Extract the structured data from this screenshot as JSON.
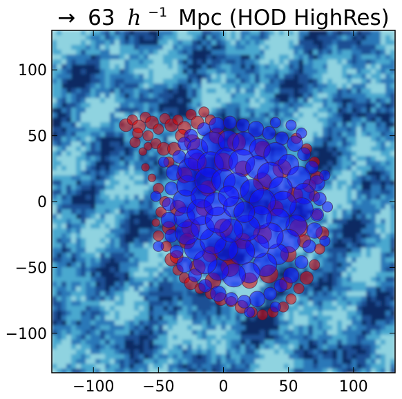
{
  "chart_data": {
    "type": "scatter",
    "title": {
      "arrow": "→",
      "prefix": "63",
      "math_symbol": "h",
      "superscript": "−1",
      "suffix": "Mpc (HOD HighRes)"
    },
    "xlabel": "",
    "ylabel": "",
    "xlim": [
      -132,
      132
    ],
    "ylim": [
      -130,
      130
    ],
    "x_ticks": [
      -100,
      -50,
      0,
      50,
      100
    ],
    "y_ticks": [
      -100,
      -50,
      0,
      50,
      100
    ],
    "x_tick_labels": [
      "−100",
      "−50",
      "0",
      "50",
      "100"
    ],
    "y_tick_labels": [
      "−100",
      "−50",
      "0",
      "50",
      "100"
    ],
    "grid": false,
    "background": "density field heatmap (blue colormap)",
    "colors": {
      "background_dark": "#0b2a63",
      "background_mid": "#2a78b8",
      "background_light": "#8fd3e0",
      "red_halos": "#e00000",
      "blue_halos": "#1010ff",
      "halo_edge": "#3a1a40"
    },
    "series": [
      {
        "color": "red",
        "points": [
          [
            -75,
            58,
            5
          ],
          [
            -70,
            62,
            4
          ],
          [
            -65,
            57,
            5
          ],
          [
            -60,
            64,
            4
          ],
          [
            -55,
            60,
            5
          ],
          [
            -50,
            55,
            4
          ],
          [
            -45,
            63,
            4
          ],
          [
            -40,
            58,
            5
          ],
          [
            -35,
            62,
            4
          ],
          [
            -30,
            56,
            5
          ],
          [
            -25,
            66,
            4
          ],
          [
            -20,
            60,
            5
          ],
          [
            -15,
            68,
            4
          ],
          [
            -10,
            62,
            4
          ],
          [
            -68,
            45,
            4
          ],
          [
            -62,
            38,
            3
          ],
          [
            -58,
            50,
            4
          ],
          [
            -52,
            44,
            4
          ],
          [
            -46,
            40,
            5
          ],
          [
            -42,
            30,
            4
          ],
          [
            -60,
            26,
            3
          ],
          [
            -55,
            18,
            3
          ],
          [
            -50,
            10,
            4
          ],
          [
            -45,
            0,
            4
          ],
          [
            -48,
            -8,
            4
          ],
          [
            -52,
            -16,
            3
          ],
          [
            -50,
            -26,
            4
          ],
          [
            -44,
            -34,
            4
          ],
          [
            -40,
            -44,
            5
          ],
          [
            -35,
            -52,
            4
          ],
          [
            -30,
            -58,
            4
          ],
          [
            -25,
            -62,
            5
          ],
          [
            -18,
            -66,
            4
          ],
          [
            -10,
            -70,
            4
          ],
          [
            -2,
            -74,
            5
          ],
          [
            6,
            -76,
            4
          ],
          [
            14,
            -80,
            5
          ],
          [
            22,
            -84,
            4
          ],
          [
            30,
            -86,
            4
          ],
          [
            38,
            -84,
            4
          ],
          [
            46,
            -80,
            4
          ],
          [
            52,
            -74,
            4
          ],
          [
            58,
            -66,
            4
          ],
          [
            64,
            -58,
            5
          ],
          [
            70,
            -48,
            4
          ],
          [
            74,
            -36,
            4
          ],
          [
            76,
            -24,
            5
          ],
          [
            72,
            -10,
            4
          ],
          [
            70,
            4,
            4
          ],
          [
            72,
            18,
            5
          ],
          [
            70,
            30,
            4
          ],
          [
            64,
            40,
            4
          ],
          [
            56,
            48,
            4
          ],
          [
            -30,
            20,
            6
          ],
          [
            -20,
            30,
            7
          ],
          [
            -12,
            10,
            6
          ],
          [
            -25,
            -20,
            7
          ],
          [
            -10,
            -40,
            6
          ],
          [
            5,
            -50,
            7
          ],
          [
            20,
            -60,
            6
          ],
          [
            35,
            -55,
            7
          ],
          [
            50,
            -40,
            6
          ],
          [
            58,
            -20,
            7
          ],
          [
            55,
            5,
            6
          ],
          [
            45,
            25,
            7
          ],
          [
            30,
            40,
            6
          ],
          [
            10,
            45,
            7
          ],
          [
            -5,
            50,
            6
          ],
          [
            -15,
            -5,
            6
          ],
          [
            0,
            -20,
            7
          ],
          [
            15,
            -30,
            6
          ],
          [
            30,
            -25,
            7
          ],
          [
            40,
            -5,
            6
          ],
          [
            30,
            15,
            7
          ],
          [
            15,
            25,
            6
          ],
          [
            0,
            30,
            7
          ],
          [
            -20,
            -50,
            6
          ],
          [
            -35,
            -5,
            6
          ],
          [
            -38,
            40,
            5
          ],
          [
            -32,
            50,
            5
          ],
          [
            -24,
            45,
            6
          ],
          [
            -66,
            52,
            4
          ],
          [
            -58,
            42,
            3
          ],
          [
            -36,
            -42,
            5
          ],
          [
            -28,
            -30,
            6
          ],
          [
            62,
            -30,
            5
          ],
          [
            48,
            -62,
            5
          ],
          [
            66,
            12,
            5
          ],
          [
            -42,
            -20,
            5
          ],
          [
            -8,
            -60,
            6
          ]
        ]
      },
      {
        "color": "blue",
        "points": [
          [
            -25,
            50,
            5
          ],
          [
            -15,
            55,
            5
          ],
          [
            -5,
            58,
            6
          ],
          [
            5,
            60,
            5
          ],
          [
            15,
            58,
            5
          ],
          [
            25,
            55,
            6
          ],
          [
            35,
            52,
            5
          ],
          [
            45,
            48,
            5
          ],
          [
            55,
            44,
            6
          ],
          [
            62,
            36,
            5
          ],
          [
            68,
            26,
            5
          ],
          [
            72,
            14,
            6
          ],
          [
            74,
            2,
            5
          ],
          [
            72,
            -10,
            5
          ],
          [
            70,
            -22,
            6
          ],
          [
            66,
            -34,
            5
          ],
          [
            60,
            -46,
            5
          ],
          [
            52,
            -56,
            6
          ],
          [
            44,
            -64,
            5
          ],
          [
            36,
            -70,
            5
          ],
          [
            26,
            -74,
            6
          ],
          [
            16,
            -76,
            5
          ],
          [
            6,
            -74,
            5
          ],
          [
            -4,
            -70,
            6
          ],
          [
            -14,
            -64,
            5
          ],
          [
            -22,
            -56,
            5
          ],
          [
            -30,
            -48,
            6
          ],
          [
            -36,
            -38,
            5
          ],
          [
            -40,
            -26,
            5
          ],
          [
            -42,
            -14,
            6
          ],
          [
            -42,
            -2,
            5
          ],
          [
            -40,
            10,
            5
          ],
          [
            -38,
            22,
            6
          ],
          [
            -34,
            34,
            5
          ],
          [
            -30,
            44,
            5
          ],
          [
            -20,
            40,
            8
          ],
          [
            -8,
            44,
            9
          ],
          [
            4,
            46,
            8
          ],
          [
            16,
            44,
            9
          ],
          [
            28,
            40,
            8
          ],
          [
            40,
            36,
            9
          ],
          [
            50,
            28,
            8
          ],
          [
            58,
            18,
            9
          ],
          [
            62,
            6,
            8
          ],
          [
            60,
            -6,
            9
          ],
          [
            56,
            -18,
            8
          ],
          [
            50,
            -30,
            9
          ],
          [
            42,
            -40,
            8
          ],
          [
            32,
            -48,
            9
          ],
          [
            20,
            -54,
            8
          ],
          [
            8,
            -56,
            9
          ],
          [
            -4,
            -52,
            8
          ],
          [
            -14,
            -46,
            9
          ],
          [
            -22,
            -36,
            8
          ],
          [
            -28,
            -24,
            9
          ],
          [
            -30,
            -12,
            8
          ],
          [
            -30,
            0,
            9
          ],
          [
            -28,
            12,
            8
          ],
          [
            -26,
            24,
            9
          ],
          [
            -22,
            32,
            8
          ],
          [
            -10,
            28,
            10
          ],
          [
            2,
            32,
            9
          ],
          [
            14,
            30,
            10
          ],
          [
            26,
            26,
            9
          ],
          [
            36,
            20,
            10
          ],
          [
            44,
            10,
            9
          ],
          [
            46,
            -2,
            10
          ],
          [
            42,
            -14,
            9
          ],
          [
            36,
            -26,
            10
          ],
          [
            26,
            -34,
            9
          ],
          [
            14,
            -38,
            10
          ],
          [
            2,
            -36,
            9
          ],
          [
            -8,
            -30,
            10
          ],
          [
            -16,
            -20,
            9
          ],
          [
            -18,
            -8,
            10
          ],
          [
            -16,
            4,
            9
          ],
          [
            -12,
            16,
            10
          ],
          [
            0,
            16,
            9
          ],
          [
            10,
            12,
            10
          ],
          [
            22,
            8,
            9
          ],
          [
            30,
            0,
            10
          ],
          [
            28,
            -12,
            9
          ],
          [
            18,
            -20,
            10
          ],
          [
            6,
            -22,
            9
          ],
          [
            -4,
            -14,
            10
          ],
          [
            -6,
            -2,
            9
          ],
          [
            8,
            -4,
            8
          ],
          [
            16,
            -8,
            8
          ],
          [
            4,
            4,
            8
          ],
          [
            52,
            58,
            4
          ],
          [
            60,
            52,
            4
          ],
          [
            40,
            60,
            4
          ],
          [
            78,
            20,
            4
          ],
          [
            80,
            -4,
            4
          ],
          [
            78,
            -30,
            4
          ],
          [
            40,
            -80,
            4
          ],
          [
            20,
            -84,
            4
          ],
          [
            -50,
            -34,
            4
          ],
          [
            -52,
            4,
            4
          ],
          [
            -46,
            30,
            4
          ]
        ]
      }
    ]
  }
}
